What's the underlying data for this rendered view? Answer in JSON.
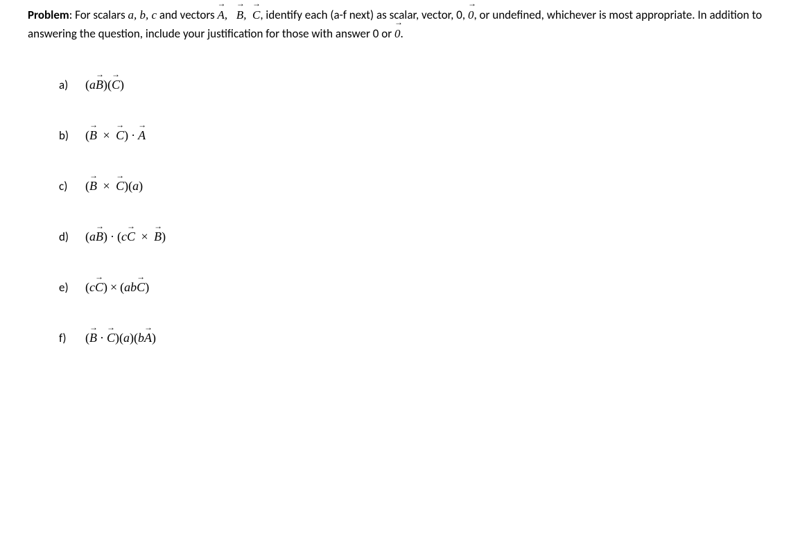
{
  "header": {
    "problem_label": "Problem",
    "intro_text_1": ": For scalars ",
    "scalars": "a, b, c",
    "intro_text_2": " and vectors ",
    "vectors_text": "A,   B,  C",
    "intro_text_3": ", identify each (a-f next) as scalar, vector, 0, ",
    "zero_vec": "0",
    "intro_text_4": ", or undefined, whichever is most appropriate. In addition to answering the question, include your justification for those with answer 0 or ",
    "zero_vec_2": "0",
    "intro_text_5": "."
  },
  "items": [
    {
      "label": "a)",
      "expr": "(aB)(C)"
    },
    {
      "label": "b)",
      "expr": "(B × C) · A"
    },
    {
      "label": "c)",
      "expr": "(B × C)(a)"
    },
    {
      "label": "d)",
      "expr": "(aB) · (cC × B)"
    },
    {
      "label": "e)",
      "expr": "(cC) × (abC)"
    },
    {
      "label": "f)",
      "expr": "(B · C)(a)(bA)"
    }
  ],
  "styling": {
    "background_color": "#ffffff",
    "text_color": "#000000",
    "body_fontsize": 17,
    "expr_fontsize": 18,
    "body_font": "Calibri",
    "math_font": "Cambria Math",
    "item_spacing": 52,
    "header_bottom_margin": 50,
    "list_indent": 45
  }
}
